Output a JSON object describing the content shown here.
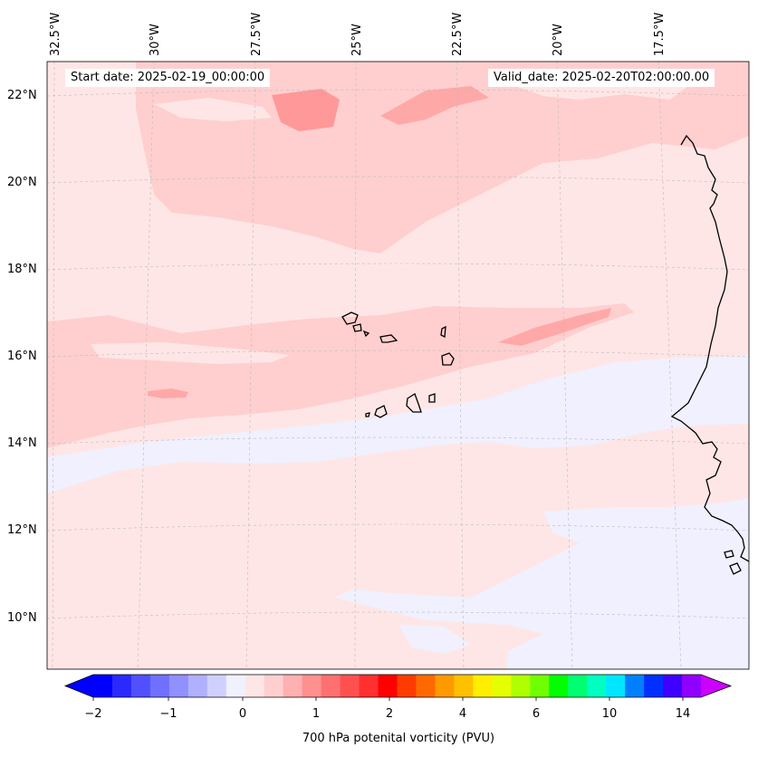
{
  "map": {
    "start_date_label": "Start date: 2025-02-19_00:00:00",
    "valid_date_label": "Valid_date: 2025-02-20T02:00:00.00",
    "longitude_labels": [
      "32.5°W",
      "30°W",
      "27.5°W",
      "25°W",
      "22.5°W",
      "20°W",
      "17.5°W"
    ],
    "latitude_labels": [
      "22°N",
      "20°N",
      "18°N",
      "16°N",
      "14°N",
      "12°N",
      "10°N"
    ],
    "field_colors": {
      "background_band": "#ffe6e6",
      "moderate_band": "#ffcfcf",
      "strong_patch": "#ff9c9c",
      "negative_band": "#f0f0ff",
      "coastline": "#000000",
      "gridline": "#bbbbbb"
    }
  },
  "colorbar": {
    "title": "700 hPa potenital vorticity (PVU)",
    "tick_labels": [
      "−2",
      "−1",
      "0",
      "1",
      "2",
      "4",
      "6",
      "10",
      "14"
    ],
    "colors": [
      "#0000ff",
      "#2a2aff",
      "#5050ff",
      "#7070ff",
      "#9090ff",
      "#b0b0ff",
      "#d0d0ff",
      "#f0f0ff",
      "#ffe6e6",
      "#ffcfcf",
      "#ffb0b0",
      "#ff9090",
      "#ff7070",
      "#ff5050",
      "#ff3030",
      "#ff0000",
      "#ff3c00",
      "#ff6a00",
      "#ff9900",
      "#ffc000",
      "#ffee00",
      "#e6ff00",
      "#b0ff00",
      "#70ff00",
      "#00ff00",
      "#00ff70",
      "#00ffc0",
      "#00e6ff",
      "#0080ff",
      "#0030ff",
      "#4000ff",
      "#9000ff"
    ],
    "under_color": "#0000ff",
    "over_color": "#cc00ff"
  }
}
